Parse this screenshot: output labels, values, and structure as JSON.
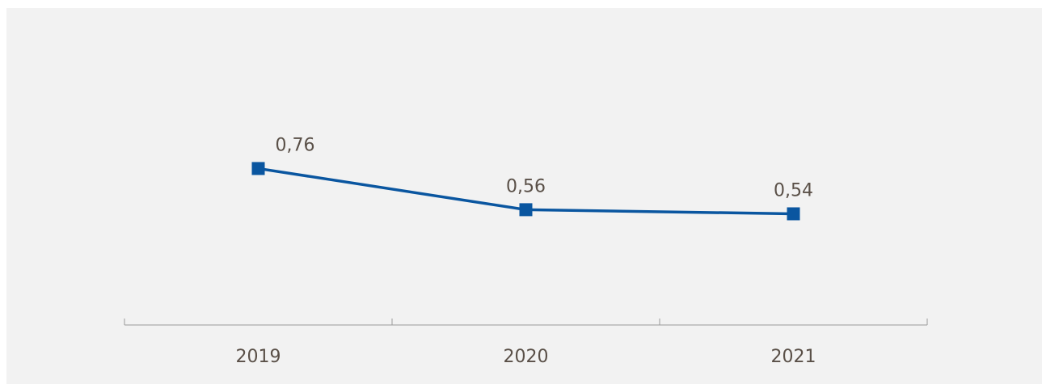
{
  "chart_data": {
    "type": "line",
    "categories": [
      "2019",
      "2020",
      "2021"
    ],
    "series": [
      {
        "values": [
          0.76,
          0.56,
          0.54
        ],
        "labels": [
          "0,76",
          "0,56",
          "0,54"
        ],
        "color": "#0a56a0"
      }
    ],
    "ylim": [
      0,
      1.5
    ],
    "grid": false,
    "legend": "none",
    "axis_color": "#9a9a9a",
    "text_color": "#5a5048",
    "background_color": "#f2f2f2"
  }
}
